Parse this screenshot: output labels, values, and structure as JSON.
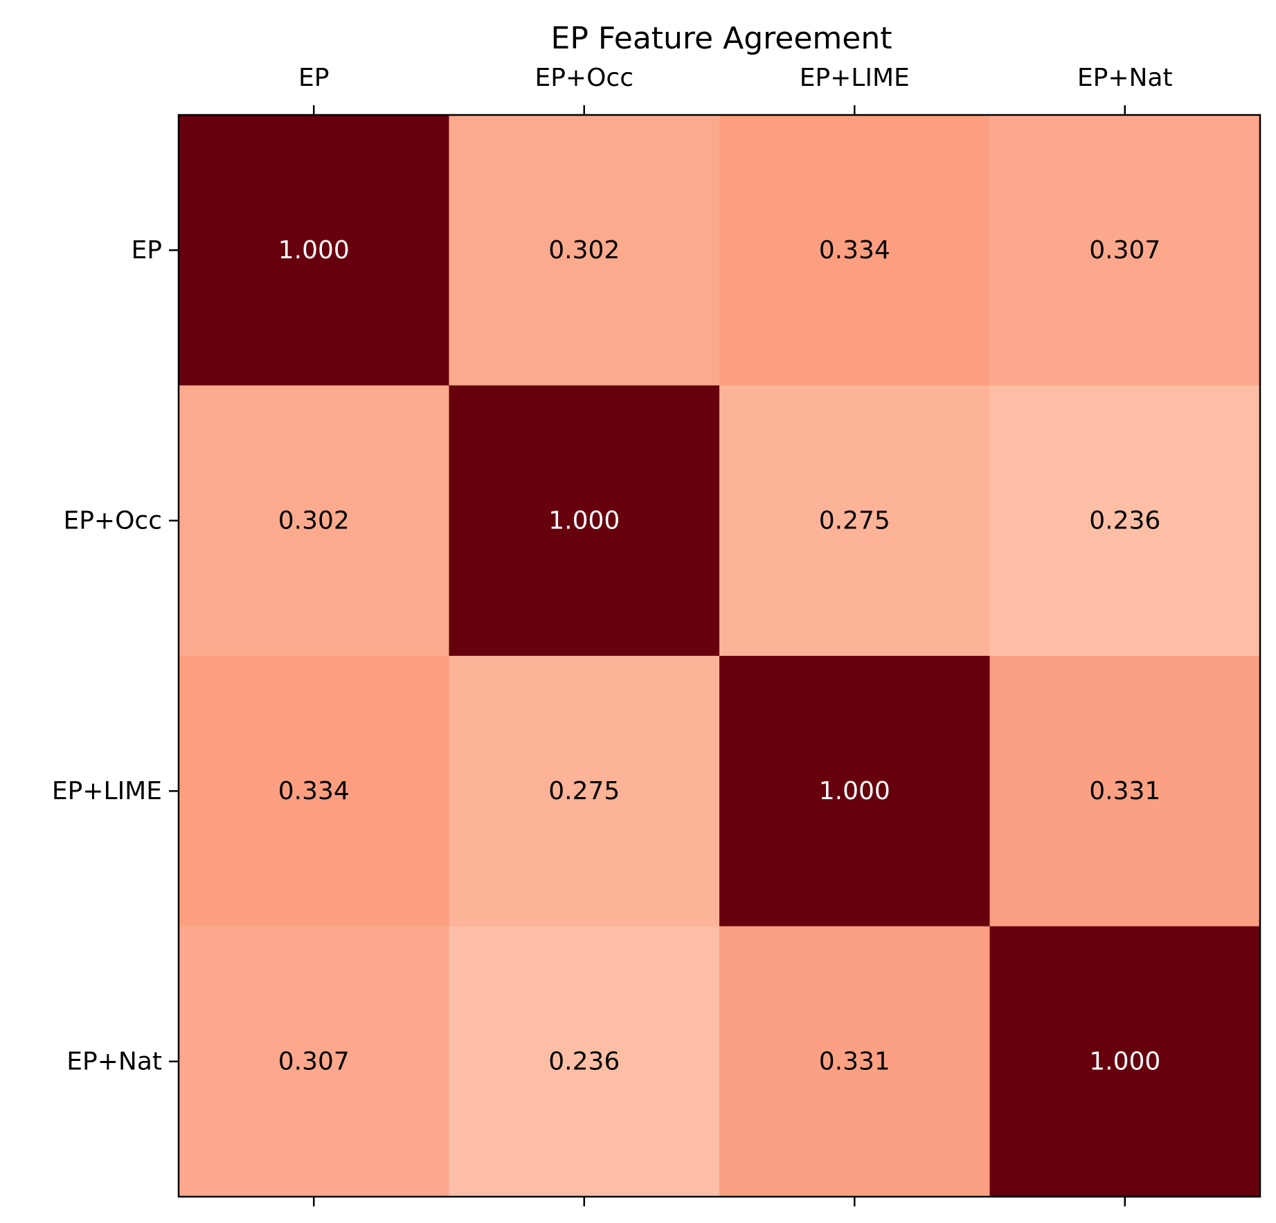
{
  "chart_data": {
    "type": "heatmap",
    "title": "EP Feature Agreement",
    "x_tick_labels": [
      "EP",
      "EP+Occ",
      "EP+LIME",
      "EP+Nat"
    ],
    "y_tick_labels": [
      "EP",
      "EP+Occ",
      "EP+LIME",
      "EP+Nat"
    ],
    "x_tick_position": "top",
    "colormap": "Reds",
    "value_range": [
      0,
      1
    ],
    "grid": false,
    "values": [
      [
        1.0,
        0.302,
        0.334,
        0.307
      ],
      [
        0.302,
        1.0,
        0.275,
        0.236
      ],
      [
        0.334,
        0.275,
        1.0,
        0.331
      ],
      [
        0.307,
        0.236,
        0.331,
        1.0
      ]
    ],
    "value_labels": [
      [
        "1.000",
        "0.302",
        "0.334",
        "0.307"
      ],
      [
        "0.302",
        "1.000",
        "0.275",
        "0.236"
      ],
      [
        "0.334",
        "0.275",
        "1.000",
        "0.331"
      ],
      [
        "0.307",
        "0.236",
        "0.331",
        "1.000"
      ]
    ]
  }
}
